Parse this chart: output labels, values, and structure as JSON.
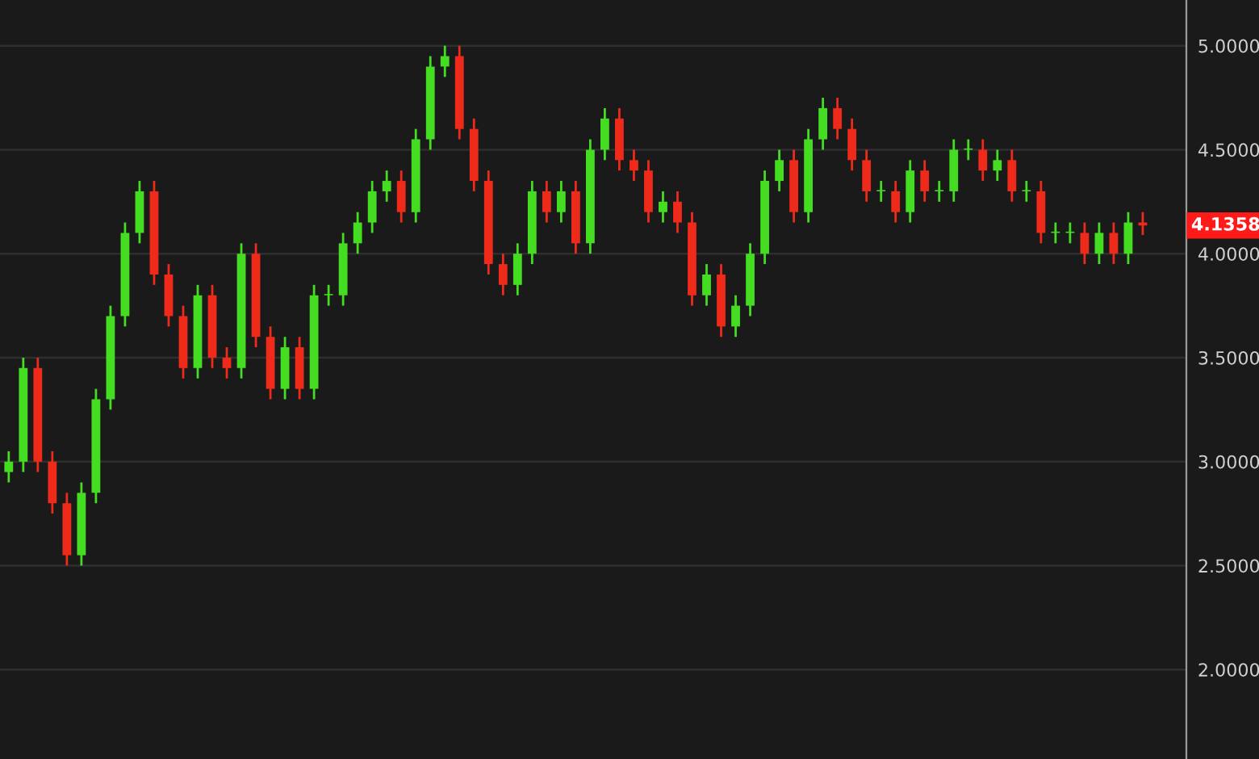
{
  "chart_data": {
    "type": "candlestick",
    "categories": [
      null,
      null,
      null,
      null,
      null,
      null,
      null,
      null,
      null,
      null,
      null,
      null,
      null,
      null,
      null,
      null,
      null,
      null,
      null,
      null,
      null,
      null,
      null,
      null,
      null,
      null,
      null,
      null,
      null,
      null,
      null,
      null,
      null,
      null,
      null,
      null,
      null,
      null,
      null,
      null,
      null,
      null,
      null,
      null,
      null,
      null,
      null,
      null,
      null,
      null,
      null,
      null,
      null,
      null,
      null,
      null,
      null,
      null,
      null,
      null,
      null,
      null,
      null,
      null,
      null,
      null,
      null,
      null,
      null,
      null,
      null,
      null,
      null,
      null,
      null,
      null,
      null,
      null,
      null
    ],
    "ohlc": [
      [
        2.95,
        3.05,
        2.9,
        3.0
      ],
      [
        3.0,
        3.5,
        2.95,
        3.45
      ],
      [
        3.45,
        3.5,
        2.95,
        3.0
      ],
      [
        3.0,
        3.05,
        2.75,
        2.8
      ],
      [
        2.8,
        2.85,
        2.5,
        2.55
      ],
      [
        2.55,
        2.9,
        2.5,
        2.85
      ],
      [
        2.85,
        3.35,
        2.8,
        3.3
      ],
      [
        3.3,
        3.75,
        3.25,
        3.7
      ],
      [
        3.7,
        4.15,
        3.65,
        4.1
      ],
      [
        4.1,
        4.35,
        4.05,
        4.3
      ],
      [
        4.3,
        4.35,
        3.85,
        3.9
      ],
      [
        3.9,
        3.95,
        3.65,
        3.7
      ],
      [
        3.7,
        3.75,
        3.4,
        3.45
      ],
      [
        3.45,
        3.85,
        3.4,
        3.8
      ],
      [
        3.8,
        3.85,
        3.45,
        3.5
      ],
      [
        3.5,
        3.55,
        3.4,
        3.45
      ],
      [
        3.45,
        4.05,
        3.4,
        4.0
      ],
      [
        4.0,
        4.05,
        3.55,
        3.6
      ],
      [
        3.6,
        3.65,
        3.3,
        3.35
      ],
      [
        3.35,
        3.6,
        3.3,
        3.55
      ],
      [
        3.55,
        3.6,
        3.3,
        3.35
      ],
      [
        3.35,
        3.85,
        3.3,
        3.8
      ],
      [
        3.8,
        3.85,
        3.75,
        3.8
      ],
      [
        3.8,
        4.1,
        3.75,
        4.05
      ],
      [
        4.05,
        4.2,
        4.0,
        4.15
      ],
      [
        4.15,
        4.35,
        4.1,
        4.3
      ],
      [
        4.3,
        4.4,
        4.25,
        4.35
      ],
      [
        4.35,
        4.4,
        4.15,
        4.2
      ],
      [
        4.2,
        4.6,
        4.15,
        4.55
      ],
      [
        4.55,
        4.95,
        4.5,
        4.9
      ],
      [
        4.9,
        5.0,
        4.85,
        4.95
      ],
      [
        4.95,
        5.0,
        4.55,
        4.6
      ],
      [
        4.6,
        4.65,
        4.3,
        4.35
      ],
      [
        4.35,
        4.4,
        3.9,
        3.95
      ],
      [
        3.95,
        4.0,
        3.8,
        3.85
      ],
      [
        3.85,
        4.05,
        3.8,
        4.0
      ],
      [
        4.0,
        4.35,
        3.95,
        4.3
      ],
      [
        4.3,
        4.35,
        4.15,
        4.2
      ],
      [
        4.2,
        4.35,
        4.15,
        4.3
      ],
      [
        4.3,
        4.35,
        4.0,
        4.05
      ],
      [
        4.05,
        4.55,
        4.0,
        4.5
      ],
      [
        4.5,
        4.7,
        4.45,
        4.65
      ],
      [
        4.65,
        4.7,
        4.4,
        4.45
      ],
      [
        4.45,
        4.5,
        4.35,
        4.4
      ],
      [
        4.4,
        4.45,
        4.15,
        4.2
      ],
      [
        4.2,
        4.3,
        4.15,
        4.25
      ],
      [
        4.25,
        4.3,
        4.1,
        4.15
      ],
      [
        4.15,
        4.2,
        3.75,
        3.8
      ],
      [
        3.8,
        3.95,
        3.75,
        3.9
      ],
      [
        3.9,
        3.95,
        3.6,
        3.65
      ],
      [
        3.65,
        3.8,
        3.6,
        3.75
      ],
      [
        3.75,
        4.05,
        3.7,
        4.0
      ],
      [
        4.0,
        4.4,
        3.95,
        4.35
      ],
      [
        4.35,
        4.5,
        4.3,
        4.45
      ],
      [
        4.45,
        4.5,
        4.15,
        4.2
      ],
      [
        4.2,
        4.6,
        4.15,
        4.55
      ],
      [
        4.55,
        4.75,
        4.5,
        4.7
      ],
      [
        4.7,
        4.75,
        4.55,
        4.6
      ],
      [
        4.6,
        4.65,
        4.4,
        4.45
      ],
      [
        4.45,
        4.5,
        4.25,
        4.3
      ],
      [
        4.3,
        4.35,
        4.25,
        4.3
      ],
      [
        4.3,
        4.35,
        4.15,
        4.2
      ],
      [
        4.2,
        4.45,
        4.15,
        4.4
      ],
      [
        4.4,
        4.45,
        4.25,
        4.3
      ],
      [
        4.3,
        4.35,
        4.25,
        4.3
      ],
      [
        4.3,
        4.55,
        4.25,
        4.5
      ],
      [
        4.5,
        4.55,
        4.45,
        4.5
      ],
      [
        4.5,
        4.55,
        4.35,
        4.4
      ],
      [
        4.4,
        4.5,
        4.35,
        4.45
      ],
      [
        4.45,
        4.5,
        4.25,
        4.3
      ],
      [
        4.3,
        4.35,
        4.25,
        4.3
      ],
      [
        4.3,
        4.35,
        4.05,
        4.1
      ],
      [
        4.1,
        4.15,
        4.05,
        4.1
      ],
      [
        4.1,
        4.15,
        4.05,
        4.1
      ],
      [
        4.1,
        4.15,
        3.95,
        4.0
      ],
      [
        4.0,
        4.15,
        3.95,
        4.1
      ],
      [
        4.1,
        4.15,
        3.95,
        4.0
      ],
      [
        4.0,
        4.2,
        3.95,
        4.15
      ],
      [
        4.15,
        4.2,
        4.09,
        4.1358
      ]
    ],
    "colors": [
      "#44dd22",
      "#44dd22",
      "#ee2a1a",
      "#ee2a1a",
      "#ee2a1a",
      "#44dd22",
      "#44dd22",
      "#44dd22",
      "#44dd22",
      "#44dd22",
      "#ee2a1a",
      "#ee2a1a",
      "#ee2a1a",
      "#44dd22",
      "#ee2a1a",
      "#ee2a1a",
      "#44dd22",
      "#ee2a1a",
      "#ee2a1a",
      "#44dd22",
      "#ee2a1a",
      "#44dd22",
      "#44dd22",
      "#44dd22",
      "#44dd22",
      "#44dd22",
      "#44dd22",
      "#ee2a1a",
      "#44dd22",
      "#44dd22",
      "#44dd22",
      "#ee2a1a",
      "#ee2a1a",
      "#ee2a1a",
      "#ee2a1a",
      "#44dd22",
      "#44dd22",
      "#ee2a1a",
      "#44dd22",
      "#ee2a1a",
      "#44dd22",
      "#44dd22",
      "#ee2a1a",
      "#ee2a1a",
      "#ee2a1a",
      "#44dd22",
      "#ee2a1a",
      "#ee2a1a",
      "#44dd22",
      "#ee2a1a",
      "#44dd22",
      "#44dd22",
      "#44dd22",
      "#44dd22",
      "#ee2a1a",
      "#44dd22",
      "#44dd22",
      "#ee2a1a",
      "#ee2a1a",
      "#ee2a1a",
      "#44dd22",
      "#ee2a1a",
      "#44dd22",
      "#ee2a1a",
      "#44dd22",
      "#44dd22",
      "#44dd22",
      "#ee2a1a",
      "#44dd22",
      "#ee2a1a",
      "#44dd22",
      "#ee2a1a",
      "#44dd22",
      "#44dd22",
      "#ee2a1a",
      "#44dd22",
      "#ee2a1a",
      "#44dd22",
      "#ee2a1a"
    ],
    "ylim": [
      1.57,
      5.22
    ],
    "yticks": [
      {
        "value": 2,
        "label": "2.0000"
      },
      {
        "value": 2.5,
        "label": "2.5000"
      },
      {
        "value": 3,
        "label": "3.0000"
      },
      {
        "value": 3.5,
        "label": "3.5000"
      },
      {
        "value": 4,
        "label": "4.0000"
      },
      {
        "value": 4.5,
        "label": "4.5000"
      },
      {
        "value": 5,
        "label": "5.0000"
      }
    ],
    "annotations": [
      "4.1358"
    ],
    "tick_labels": "y",
    "grid": "y"
  }
}
